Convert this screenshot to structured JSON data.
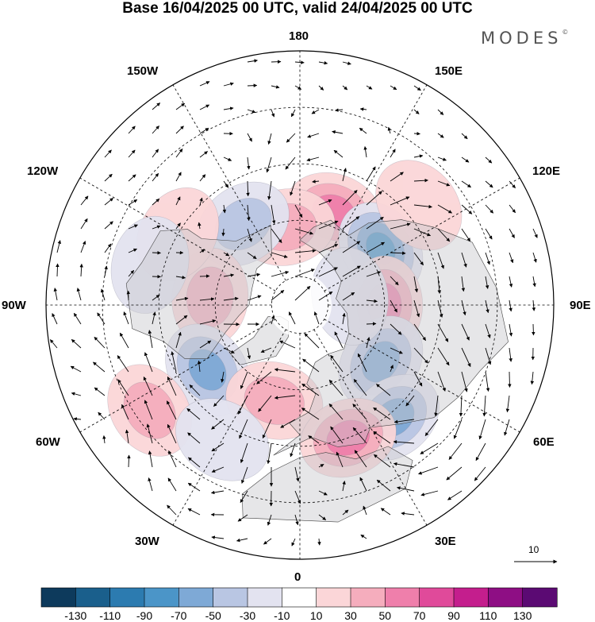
{
  "title": "Base 16/04/2025 00 UTC, valid 24/04/2025 00 UTC",
  "logo": {
    "text": "MODES",
    "mark": "©"
  },
  "longitude_labels": {
    "top": "180",
    "bottom": "0",
    "left": "90W",
    "right": "90E",
    "upper_left_1": "150W",
    "upper_left_2": "120W",
    "lower_left_1": "60W",
    "lower_left_2": "30W",
    "upper_right_1": "150E",
    "upper_right_2": "120E",
    "lower_right_1": "60E",
    "lower_right_2": "30E"
  },
  "reference_vector": {
    "label": "10"
  },
  "colorbar": {
    "labels": [
      "-130",
      "-110",
      "-90",
      "-70",
      "-50",
      "-30",
      "-10",
      "10",
      "30",
      "50",
      "70",
      "90",
      "110",
      "130"
    ],
    "colors": [
      "#0d3a5c",
      "#1a5f8c",
      "#2c7bb0",
      "#4b95c8",
      "#7ea9d6",
      "#b9c6e3",
      "#e3e3f0",
      "#ffffff",
      "#fbd6d8",
      "#f5adbd",
      "#ef7fab",
      "#e04a9a",
      "#c41e8d",
      "#8e0e84",
      "#5b0a73"
    ]
  },
  "anomaly_centers": [
    {
      "lon": 160,
      "lat": 55,
      "value": 75
    },
    {
      "lon": -170,
      "lat": 62,
      "value": 55
    },
    {
      "lon": -145,
      "lat": 55,
      "value": -55
    },
    {
      "lon": 125,
      "lat": 55,
      "value": -95
    },
    {
      "lon": 90,
      "lat": 60,
      "value": 75
    },
    {
      "lon": -95,
      "lat": 58,
      "value": 45
    },
    {
      "lon": -55,
      "lat": 50,
      "value": -75
    },
    {
      "lon": 55,
      "lat": 55,
      "value": -60
    },
    {
      "lon": 40,
      "lat": 38,
      "value": -75
    },
    {
      "lon": -15,
      "lat": 55,
      "value": 55
    },
    {
      "lon": 20,
      "lat": 40,
      "value": 75
    },
    {
      "lon": -55,
      "lat": 25,
      "value": 45
    },
    {
      "lon": 100,
      "lat": 72,
      "value": -35
    },
    {
      "lon": -120,
      "lat": 40,
      "value": 35
    },
    {
      "lon": -105,
      "lat": 35,
      "value": -35
    },
    {
      "lon": 130,
      "lat": 35,
      "value": 25
    },
    {
      "lon": -30,
      "lat": 35,
      "value": -35
    }
  ]
}
